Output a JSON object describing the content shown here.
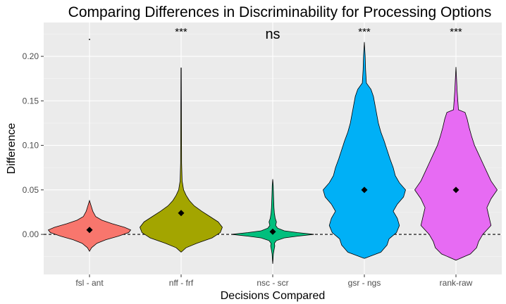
{
  "chart_data": {
    "type": "violin",
    "title": "Comparing Differences in Discriminability for Processing Options",
    "xlabel": "Decisions Compared",
    "ylabel": "Difference",
    "ylim": [
      -0.045,
      0.238
    ],
    "yticks": [
      0.0,
      0.05,
      0.1,
      0.15,
      0.2
    ],
    "ytick_labels": [
      "0.00",
      "0.05",
      "0.10",
      "0.15",
      "0.20"
    ],
    "reference_line": {
      "y": 0,
      "style": "dashed"
    },
    "grid": true,
    "panel_background": "#ebebeb",
    "categories": [
      "fsl - ant",
      "nff - frf",
      "nsc - scr",
      "gsr - ngs",
      "rank-raw"
    ],
    "series": [
      {
        "category": "fsl - ant",
        "color": "#F8766D",
        "mean": 0.005,
        "min": -0.019,
        "max": 0.038,
        "outlier": 0.219,
        "significance": "",
        "profile": [
          [
            -0.019,
            0.0
          ],
          [
            -0.015,
            0.05
          ],
          [
            -0.01,
            0.18
          ],
          [
            -0.006,
            0.4
          ],
          [
            -0.002,
            0.7
          ],
          [
            0.002,
            0.95
          ],
          [
            0.005,
            1.0
          ],
          [
            0.008,
            0.85
          ],
          [
            0.012,
            0.55
          ],
          [
            0.016,
            0.3
          ],
          [
            0.02,
            0.15
          ],
          [
            0.026,
            0.08
          ],
          [
            0.032,
            0.04
          ],
          [
            0.038,
            0.0
          ]
        ]
      },
      {
        "category": "nff - frf",
        "color": "#A3A500",
        "mean": 0.024,
        "min": -0.02,
        "max": 0.187,
        "significance": "***",
        "profile": [
          [
            -0.02,
            0.0
          ],
          [
            -0.015,
            0.12
          ],
          [
            -0.01,
            0.38
          ],
          [
            -0.004,
            0.75
          ],
          [
            0.002,
            0.95
          ],
          [
            0.008,
            1.0
          ],
          [
            0.014,
            0.9
          ],
          [
            0.02,
            0.7
          ],
          [
            0.026,
            0.5
          ],
          [
            0.032,
            0.32
          ],
          [
            0.038,
            0.2
          ],
          [
            0.044,
            0.12
          ],
          [
            0.05,
            0.06
          ],
          [
            0.06,
            0.025
          ],
          [
            0.08,
            0.012
          ],
          [
            0.187,
            0.004
          ]
        ]
      },
      {
        "category": "nsc - scr",
        "color": "#00BF7D",
        "mean": 0.003,
        "min": -0.033,
        "max": 0.062,
        "significance": "ns",
        "profile": [
          [
            -0.033,
            0.0
          ],
          [
            -0.028,
            0.008
          ],
          [
            -0.022,
            0.015
          ],
          [
            -0.018,
            0.03
          ],
          [
            -0.013,
            0.05
          ],
          [
            -0.01,
            0.04
          ],
          [
            -0.007,
            0.09
          ],
          [
            -0.004,
            0.28
          ],
          [
            -0.002,
            0.6
          ],
          [
            0.0,
            1.0
          ],
          [
            0.002,
            0.6
          ],
          [
            0.004,
            0.28
          ],
          [
            0.007,
            0.12
          ],
          [
            0.01,
            0.07
          ],
          [
            0.014,
            0.09
          ],
          [
            0.018,
            0.06
          ],
          [
            0.024,
            0.04
          ],
          [
            0.03,
            0.03
          ],
          [
            0.036,
            0.025
          ],
          [
            0.045,
            0.018
          ],
          [
            0.055,
            0.012
          ],
          [
            0.062,
            0.0
          ]
        ]
      },
      {
        "category": "gsr - ngs",
        "color": "#00B0F6",
        "mean": 0.05,
        "min": -0.027,
        "max": 0.216,
        "significance": "***",
        "profile": [
          [
            -0.027,
            0.0
          ],
          [
            -0.02,
            0.4
          ],
          [
            -0.012,
            0.55
          ],
          [
            -0.005,
            0.6
          ],
          [
            0.002,
            0.78
          ],
          [
            0.01,
            0.85
          ],
          [
            0.018,
            0.8
          ],
          [
            0.026,
            0.7
          ],
          [
            0.034,
            0.8
          ],
          [
            0.042,
            0.95
          ],
          [
            0.05,
            1.0
          ],
          [
            0.058,
            0.85
          ],
          [
            0.066,
            0.75
          ],
          [
            0.075,
            0.7
          ],
          [
            0.085,
            0.62
          ],
          [
            0.095,
            0.55
          ],
          [
            0.105,
            0.48
          ],
          [
            0.115,
            0.4
          ],
          [
            0.125,
            0.34
          ],
          [
            0.135,
            0.3
          ],
          [
            0.145,
            0.26
          ],
          [
            0.155,
            0.22
          ],
          [
            0.163,
            0.16
          ],
          [
            0.17,
            0.05
          ],
          [
            0.185,
            0.03
          ],
          [
            0.2,
            0.02
          ],
          [
            0.216,
            0.0
          ]
        ]
      },
      {
        "category": "rank-raw",
        "color": "#E76BF3",
        "mean": 0.05,
        "min": -0.029,
        "max": 0.188,
        "significance": "***",
        "profile": [
          [
            -0.029,
            0.0
          ],
          [
            -0.022,
            0.35
          ],
          [
            -0.015,
            0.5
          ],
          [
            -0.008,
            0.55
          ],
          [
            0.0,
            0.65
          ],
          [
            0.01,
            0.85
          ],
          [
            0.02,
            0.8
          ],
          [
            0.03,
            0.75
          ],
          [
            0.04,
            0.85
          ],
          [
            0.05,
            1.0
          ],
          [
            0.06,
            0.85
          ],
          [
            0.07,
            0.75
          ],
          [
            0.08,
            0.65
          ],
          [
            0.09,
            0.55
          ],
          [
            0.1,
            0.45
          ],
          [
            0.11,
            0.38
          ],
          [
            0.12,
            0.32
          ],
          [
            0.13,
            0.27
          ],
          [
            0.137,
            0.22
          ],
          [
            0.14,
            0.06
          ],
          [
            0.16,
            0.03
          ],
          [
            0.188,
            0.0
          ]
        ]
      }
    ]
  }
}
